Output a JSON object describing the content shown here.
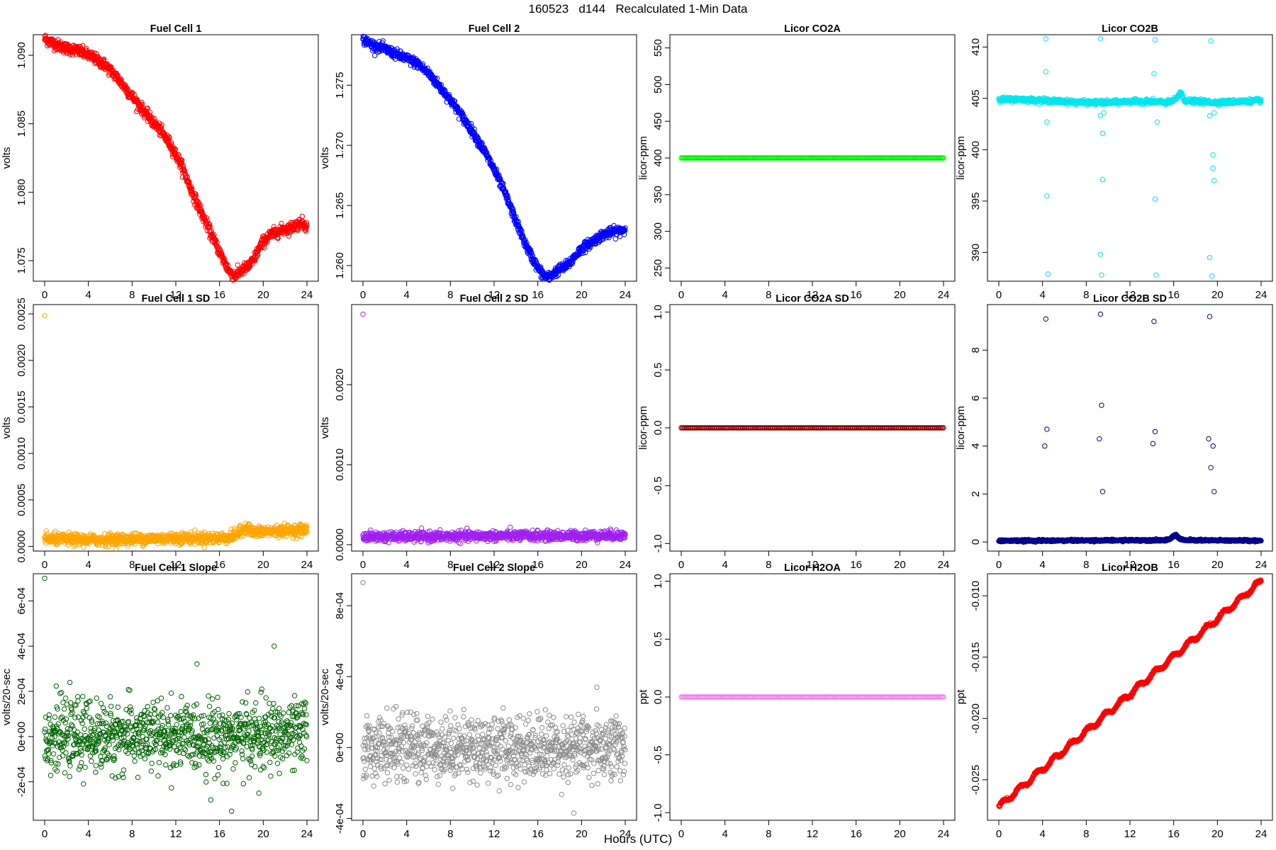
{
  "figure": {
    "title": "160523   d144   Recalculated 1-Min Data",
    "xlabel": "Hours (UTC)"
  },
  "chart_data": [
    {
      "type": "scatter",
      "title": "Fuel Cell 1",
      "ylabel": "volts",
      "color": "#ff0000",
      "xlim": [
        0,
        24
      ],
      "ylim": [
        1.0735,
        1.0915
      ],
      "xticks": [
        "0",
        "4",
        "8",
        "12",
        "16",
        "20",
        "24"
      ],
      "yticks": [
        {
          "v": 1.075,
          "label": "1.075"
        },
        {
          "v": 1.08,
          "label": "1.080"
        },
        {
          "v": 1.085,
          "label": "1.085"
        },
        {
          "v": 1.09,
          "label": "1.090"
        }
      ],
      "series": [
        {
          "x": [
            0,
            1,
            2,
            2.8,
            3.5,
            4.5,
            5.5,
            6.5,
            7.5,
            8.5,
            9.5,
            10.5,
            11.5,
            12.5,
            13.5,
            14.5,
            15.5,
            16.5,
            17.0,
            17.5,
            18.0,
            18.5,
            19.0,
            19.5,
            20.0,
            20.5,
            21.0,
            21.5,
            22.0,
            22.5,
            23.0,
            23.5,
            24.0
          ],
          "y": [
            1.0912,
            1.0908,
            1.0905,
            1.0904,
            1.0902,
            1.0898,
            1.0893,
            1.0885,
            1.0875,
            1.0865,
            1.0855,
            1.0846,
            1.0835,
            1.082,
            1.08,
            1.0782,
            1.0765,
            1.0748,
            1.0741,
            1.0739,
            1.0743,
            1.0745,
            1.0749,
            1.0757,
            1.0764,
            1.0768,
            1.077,
            1.0772,
            1.0773,
            1.0774,
            1.0776,
            1.0778,
            1.0775
          ]
        }
      ],
      "noise": 0.0002
    },
    {
      "type": "scatter",
      "title": "Fuel Cell 2",
      "ylabel": "volts",
      "color": "#0000ff",
      "xlim": [
        0,
        24
      ],
      "ylim": [
        1.2587,
        1.2792
      ],
      "xticks": [
        "0",
        "4",
        "8",
        "12",
        "16",
        "20",
        "24"
      ],
      "yticks": [
        {
          "v": 1.26,
          "label": "1.260"
        },
        {
          "v": 1.265,
          "label": "1.265"
        },
        {
          "v": 1.27,
          "label": "1.270"
        },
        {
          "v": 1.275,
          "label": "1.275"
        }
      ],
      "series": [
        {
          "x": [
            0,
            1,
            2,
            3,
            4,
            5,
            6,
            7,
            8,
            9,
            10,
            11,
            12,
            13,
            14,
            15,
            16,
            16.5,
            17,
            17.5,
            18,
            18.5,
            19,
            19.5,
            20,
            21,
            22,
            23,
            24
          ],
          "y": [
            1.2788,
            1.2783,
            1.278,
            1.2776,
            1.2772,
            1.2768,
            1.276,
            1.2749,
            1.2738,
            1.2725,
            1.2712,
            1.2697,
            1.268,
            1.266,
            1.2637,
            1.2615,
            1.2598,
            1.2592,
            1.259,
            1.2594,
            1.2597,
            1.2599,
            1.2603,
            1.2609,
            1.2614,
            1.262,
            1.2626,
            1.2628,
            1.263
          ]
        }
      ],
      "noise": 0.0002
    },
    {
      "type": "scatter",
      "title": "Licor CO2A",
      "ylabel": "licor-ppm",
      "color": "#00ee00",
      "xlim": [
        0,
        24
      ],
      "ylim": [
        232,
        568
      ],
      "xticks": [
        "0",
        "4",
        "8",
        "12",
        "16",
        "20",
        "24"
      ],
      "yticks": [
        {
          "v": 250,
          "label": "250"
        },
        {
          "v": 300,
          "label": "300"
        },
        {
          "v": 350,
          "label": "350"
        },
        {
          "v": 400,
          "label": "400"
        },
        {
          "v": 450,
          "label": "450"
        },
        {
          "v": 500,
          "label": "500"
        },
        {
          "v": 550,
          "label": "550"
        }
      ],
      "series": [
        {
          "x": [
            0,
            24
          ],
          "y": [
            400,
            400
          ]
        }
      ],
      "noise": 0
    },
    {
      "type": "scatter",
      "title": "Licor CO2B",
      "ylabel": "licor-ppm",
      "color": "#00e5ee",
      "xlim": [
        0,
        24
      ],
      "ylim": [
        387.2,
        411.2
      ],
      "xticks": [
        "0",
        "4",
        "8",
        "12",
        "16",
        "20",
        "24"
      ],
      "yticks": [
        {
          "v": 390,
          "label": "390"
        },
        {
          "v": 395,
          "label": "395"
        },
        {
          "v": 400,
          "label": "400"
        },
        {
          "v": 405,
          "label": "405"
        },
        {
          "v": 410,
          "label": "410"
        }
      ],
      "series": [
        {
          "x": [
            0,
            2,
            4,
            6,
            8,
            10,
            12,
            14,
            15.5,
            16.2,
            16.6,
            17,
            18,
            20,
            22,
            24
          ],
          "y": [
            404.9,
            404.9,
            404.8,
            404.7,
            404.6,
            404.6,
            404.7,
            404.7,
            404.6,
            404.9,
            405.6,
            404.8,
            404.7,
            404.6,
            404.7,
            404.8
          ]
        }
      ],
      "noise": 0.1,
      "outliers": {
        "x": [
          4.3,
          4.3,
          4.4,
          4.4,
          4.5,
          9.3,
          9.3,
          9.3,
          9.4,
          9.5,
          9.5,
          9.6,
          14.2,
          14.3,
          14.3,
          14.4,
          14.5,
          19.3,
          19.3,
          19.4,
          19.5,
          19.6,
          19.6,
          19.7,
          19.7
        ],
        "y": [
          410.8,
          407.6,
          402.7,
          395.5,
          387.9,
          410.8,
          403.3,
          389.8,
          387.8,
          401.6,
          397.1,
          403.6,
          407.4,
          410.7,
          395.2,
          387.8,
          402.7,
          389.5,
          403.3,
          410.6,
          387.7,
          399.5,
          398.2,
          397.0,
          403.6
        ]
      }
    },
    {
      "type": "scatter",
      "title": "Fuel Cell 1 SD",
      "ylabel": "volts",
      "color": "#ffa500",
      "xlim": [
        0,
        24
      ],
      "ylim": [
        -5e-05,
        0.0026
      ],
      "xticks": [
        "0",
        "4",
        "8",
        "12",
        "16",
        "20",
        "24"
      ],
      "yticks": [
        {
          "v": 0.0,
          "label": "0.0000"
        },
        {
          "v": 0.0005,
          "label": "0.0005"
        },
        {
          "v": 0.001,
          "label": "0.0010"
        },
        {
          "v": 0.0015,
          "label": "0.0015"
        },
        {
          "v": 0.002,
          "label": "0.0020"
        },
        {
          "v": 0.0025,
          "label": "0.0025"
        }
      ],
      "series": [
        {
          "x": [
            0,
            4,
            8,
            12,
            16,
            17,
            18,
            18.5,
            19,
            20,
            22,
            24
          ],
          "y": [
            8e-05,
            7e-05,
            8e-05,
            9e-05,
            9e-05,
            0.0001,
            0.00016,
            0.00022,
            0.00015,
            0.00016,
            0.00017,
            0.00018
          ]
        }
      ],
      "noise": 3e-05,
      "outliers": {
        "x": [
          0.0
        ],
        "y": [
          0.00248
        ]
      }
    },
    {
      "type": "scatter",
      "title": "Fuel Cell 2 SD",
      "ylabel": "volts",
      "color": "#a020f0",
      "xlim": [
        0,
        24
      ],
      "ylim": [
        -8e-05,
        0.003
      ],
      "xticks": [
        "0",
        "4",
        "8",
        "12",
        "16",
        "20",
        "24"
      ],
      "yticks": [
        {
          "v": 0.0,
          "label": "0.0000"
        },
        {
          "v": 0.001,
          "label": "0.0010"
        },
        {
          "v": 0.002,
          "label": "0.0020"
        }
      ],
      "series": [
        {
          "x": [
            0,
            6,
            12,
            18,
            24
          ],
          "y": [
            0.0001,
            0.0001,
            0.00011,
            0.00011,
            0.00012
          ]
        }
      ],
      "noise": 3e-05,
      "outliers": {
        "x": [
          0.0
        ],
        "y": [
          0.00288
        ]
      }
    },
    {
      "type": "scatter",
      "title": "Licor CO2A SD",
      "ylabel": "licor-ppm",
      "color": "#8b0000",
      "xlim": [
        0,
        24
      ],
      "ylim": [
        -1.065,
        1.065
      ],
      "xticks": [
        "0",
        "4",
        "8",
        "12",
        "16",
        "20",
        "24"
      ],
      "yticks": [
        {
          "v": -1.0,
          "label": "-1.0"
        },
        {
          "v": -0.5,
          "label": "-0.5"
        },
        {
          "v": 0.0,
          "label": "0.0"
        },
        {
          "v": 0.5,
          "label": "0.5"
        },
        {
          "v": 1.0,
          "label": "1.0"
        }
      ],
      "series": [
        {
          "x": [
            0,
            24
          ],
          "y": [
            0,
            0
          ]
        }
      ],
      "noise": 0
    },
    {
      "type": "scatter",
      "title": "Licor CO2B SD",
      "ylabel": "licor-ppm",
      "color": "#00008b",
      "xlim": [
        0,
        24
      ],
      "ylim": [
        -0.38,
        9.9
      ],
      "xticks": [
        "0",
        "4",
        "8",
        "12",
        "16",
        "20",
        "24"
      ],
      "yticks": [
        {
          "v": 0,
          "label": "0"
        },
        {
          "v": 2,
          "label": "2"
        },
        {
          "v": 4,
          "label": "4"
        },
        {
          "v": 6,
          "label": "6"
        },
        {
          "v": 8,
          "label": "8"
        }
      ],
      "series": [
        {
          "x": [
            0,
            12,
            15.5,
            16.2,
            16.5,
            17,
            24
          ],
          "y": [
            0.05,
            0.07,
            0.08,
            0.3,
            0.15,
            0.07,
            0.06
          ]
        }
      ],
      "noise": 0.02,
      "outliers": {
        "x": [
          4.2,
          4.3,
          4.4,
          9.2,
          9.3,
          9.4,
          9.5,
          14.1,
          14.2,
          14.3,
          19.2,
          19.3,
          19.4,
          19.6,
          19.7
        ],
        "y": [
          4.0,
          9.3,
          4.7,
          4.3,
          9.5,
          5.7,
          2.1,
          4.1,
          9.2,
          4.6,
          4.3,
          9.4,
          3.1,
          4.0,
          2.1
        ]
      }
    },
    {
      "type": "scatter",
      "title": "Fuel Cell 1 Slope",
      "ylabel": "volts/20-sec",
      "color": "#006400",
      "xlim": [
        0,
        24
      ],
      "ylim": [
        -0.00037,
        0.00072
      ],
      "xticks": [
        "0",
        "4",
        "8",
        "12",
        "16",
        "20",
        "24"
      ],
      "yticks": [
        {
          "v": -0.0002,
          "label": "-2e-04"
        },
        {
          "v": 0,
          "label": "0e+00"
        },
        {
          "v": 0.0002,
          "label": "2e-04"
        },
        {
          "v": 0.0004,
          "label": "4e-04"
        },
        {
          "v": 0.0006,
          "label": "6e-04"
        }
      ],
      "series": [
        {
          "x": [
            0,
            12,
            17,
            24
          ],
          "y": [
            0.0,
            0.0,
            0.0,
            1e-05
          ]
        }
      ],
      "noise": 7.5e-05,
      "outliers": {
        "x": [
          0.0,
          15.2,
          17.1,
          19.6,
          21.0
        ],
        "y": [
          0.0007,
          -0.00028,
          -0.00033,
          -0.00025,
          0.0004
        ]
      }
    },
    {
      "type": "scatter",
      "title": "Fuel Cell 2 Slope",
      "ylabel": "volts/20-sec",
      "color": "#8c8c8c",
      "xlim": [
        0,
        24
      ],
      "ylim": [
        -0.00041,
        0.00098
      ],
      "xticks": [
        "0",
        "4",
        "8",
        "12",
        "16",
        "20",
        "24"
      ],
      "yticks": [
        {
          "v": -0.0004,
          "label": "-4e-04"
        },
        {
          "v": 0,
          "label": "0e+00"
        },
        {
          "v": 0.0004,
          "label": "4e-04"
        },
        {
          "v": 0.0008,
          "label": "8e-04"
        }
      ],
      "series": [
        {
          "x": [
            0,
            12,
            19,
            24
          ],
          "y": [
            0.0,
            0.0,
            0.0,
            1e-05
          ]
        }
      ],
      "noise": 9e-05,
      "outliers": {
        "x": [
          0.0,
          19.3,
          21.4
        ],
        "y": [
          0.00093,
          -0.00037,
          0.00034
        ]
      }
    },
    {
      "type": "scatter",
      "title": "Licor H2OA",
      "ylabel": "ppt",
      "color": "#ee82ee",
      "xlim": [
        0,
        24
      ],
      "ylim": [
        -1.065,
        1.065
      ],
      "xticks": [
        "0",
        "4",
        "8",
        "12",
        "16",
        "20",
        "24"
      ],
      "yticks": [
        {
          "v": -1.0,
          "label": "-1.0"
        },
        {
          "v": -0.5,
          "label": "-0.5"
        },
        {
          "v": 0.0,
          "label": "0.0"
        },
        {
          "v": 0.5,
          "label": "0.5"
        },
        {
          "v": 1.0,
          "label": "1.0"
        }
      ],
      "series": [
        {
          "x": [
            0,
            24
          ],
          "y": [
            0,
            0
          ]
        }
      ],
      "noise": 0
    },
    {
      "type": "scatter",
      "title": "Licor H2OB",
      "ylabel": "ppt",
      "color": "#ff0000",
      "xlim": [
        0,
        24
      ],
      "ylim": [
        -0.0283,
        -0.0082
      ],
      "xticks": [
        "0",
        "4",
        "8",
        "12",
        "16",
        "20",
        "24"
      ],
      "yticks": [
        {
          "v": -0.025,
          "label": "-0.025"
        },
        {
          "v": -0.02,
          "label": "-0.020"
        },
        {
          "v": -0.015,
          "label": "-0.015"
        },
        {
          "v": -0.01,
          "label": "-0.010"
        }
      ],
      "series": [
        {
          "x": [
            0,
            24
          ],
          "y": [
            -0.0272,
            -0.0088
          ]
        }
      ],
      "noise": 5e-05,
      "wave": 0.0002
    }
  ]
}
